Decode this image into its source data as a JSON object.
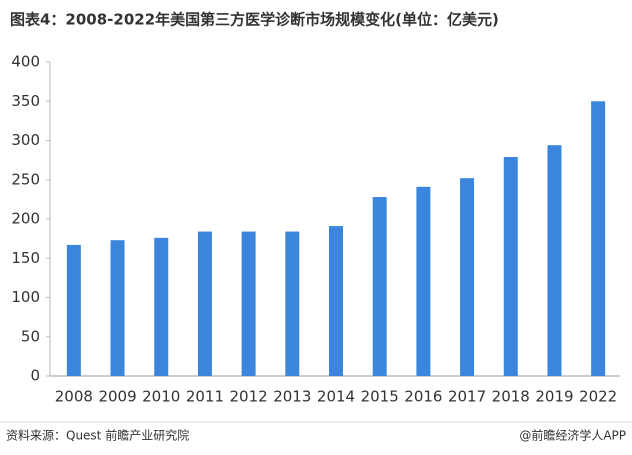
{
  "chart_data": {
    "type": "bar",
    "title": "图表4：2008-2022年美国第三方医学诊断市场规模变化(单位：亿美元)",
    "categories": [
      "2008",
      "2009",
      "2010",
      "2011",
      "2012",
      "2013",
      "2014",
      "2015",
      "2016",
      "2017",
      "2018",
      "2019",
      "2022"
    ],
    "values": [
      167,
      173,
      176,
      184,
      184,
      184,
      191,
      228,
      241,
      252,
      279,
      294,
      350
    ],
    "color": "#3b86dc",
    "ylim": [
      0,
      400
    ],
    "yticks": [
      0,
      50,
      100,
      150,
      200,
      250,
      300,
      350,
      400
    ],
    "grid": false,
    "source": "资料来源：Quest 前瞻产业研究院",
    "credit": "@前瞻经济学人APP"
  }
}
